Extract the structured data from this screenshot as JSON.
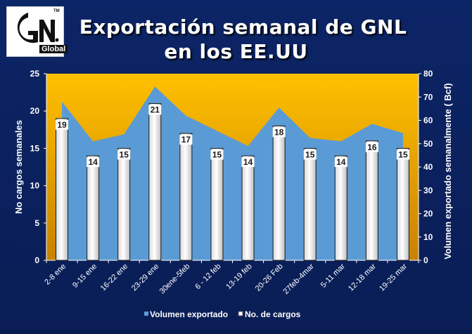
{
  "chart_data": {
    "type": "bar",
    "title": [
      "Exportación semanal de GNL",
      "en los EE.UU"
    ],
    "categories": [
      "2-8 ene",
      "9-15 ene",
      "16-22 ene",
      "23-29 ene",
      "30ene-5feb",
      "6 - 12 feb",
      "13-19 feb",
      "20-26 Feb",
      "27feb-4mar",
      "5-11 mar",
      "12-18 mar",
      "19-25 mar"
    ],
    "series": [
      {
        "name": "Volumen exportado",
        "type": "area",
        "axis": "right",
        "values": [
          68,
          51,
          54,
          74.5,
          62,
          55.5,
          49,
          65.5,
          52.5,
          51,
          58.5,
          54.5
        ]
      },
      {
        "name": "No. de cargos",
        "type": "bar",
        "axis": "left",
        "values": [
          19,
          14,
          15,
          21,
          17,
          15,
          14,
          18,
          15,
          14,
          16,
          15
        ]
      }
    ],
    "ylabel": "No cargos semanales",
    "ylabel_right": "Volumen exportado semanalmente ( Bcf)",
    "ylim": [
      0,
      25
    ],
    "yticks": [
      0,
      5,
      10,
      15,
      20,
      25
    ],
    "ylim_right": [
      0,
      80
    ],
    "yticks_right": [
      0,
      10,
      20,
      30,
      40,
      50,
      60,
      70,
      80
    ],
    "legend_position": "bottom",
    "colors": {
      "area": "#5b9bd5",
      "plot_bg_top": "#ffc000",
      "plot_bg_bottom": "#c88200",
      "bar": "#ffffff",
      "background": "#0b1f5c"
    }
  },
  "logo": {
    "text": "Global"
  }
}
